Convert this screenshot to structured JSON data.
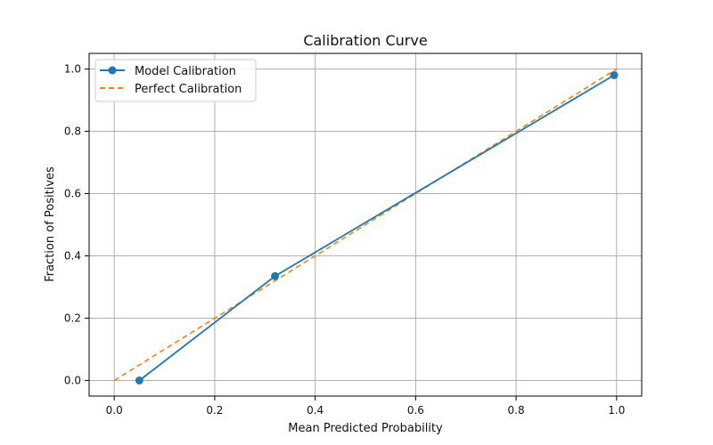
{
  "chart_data": {
    "type": "line",
    "title": "Calibration Curve",
    "xlabel": "Mean Predicted Probability",
    "ylabel": "Fraction of Positives",
    "xlim": [
      -0.05,
      1.05
    ],
    "ylim": [
      -0.05,
      1.05
    ],
    "xticks": [
      0.0,
      0.2,
      0.4,
      0.6,
      0.8,
      1.0
    ],
    "yticks": [
      0.0,
      0.2,
      0.4,
      0.6,
      0.8,
      1.0
    ],
    "xtick_labels": [
      "0.0",
      "0.2",
      "0.4",
      "0.6",
      "0.8",
      "1.0"
    ],
    "ytick_labels": [
      "0.0",
      "0.2",
      "0.4",
      "0.6",
      "0.8",
      "1.0"
    ],
    "grid": true,
    "legend_position": "top-left",
    "series": [
      {
        "name": "Model Calibration",
        "color": "#1f77b4",
        "style": "solid-with-markers",
        "x": [
          0.05,
          0.32,
          0.995
        ],
        "y": [
          0.0,
          0.335,
          0.98
        ]
      },
      {
        "name": "Perfect Calibration",
        "color": "#ff7f0e",
        "style": "dashed",
        "x": [
          0.0,
          1.0
        ],
        "y": [
          0.0,
          1.0
        ]
      }
    ]
  }
}
